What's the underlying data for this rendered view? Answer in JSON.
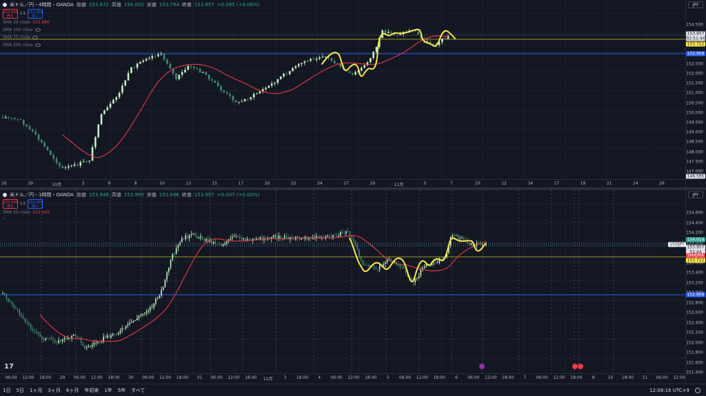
{
  "colors": {
    "bg": "#131722",
    "up": "#c5f3c1",
    "down": "#3d8f6e",
    "sma": "#f23645",
    "hl": "#ffeb3b",
    "blue": "#2962ff",
    "olive": "#9a9a1a",
    "grid": "#1e222d"
  },
  "top": {
    "title": "米ドル／円・4時間・OANDA",
    "ohlc": [
      {
        "k": "始値",
        "v": "153.872"
      },
      {
        "k": "高値",
        "v": "154.002"
      },
      {
        "k": "安値",
        "v": "153.794"
      },
      {
        "k": "終値",
        "v": "153.957"
      }
    ],
    "change": "+0.085 (+0.06%)",
    "sell_price": "153.949",
    "sell_label": "売り",
    "buy_price": "153.964",
    "buy_label": "買い",
    "spread": "1.5",
    "indicators": [
      {
        "name": "SMA 20 close",
        "value": "153.880"
      },
      {
        "name": "SMA 100 close",
        "value": ""
      },
      {
        "name": "SMA 75 close",
        "value": ""
      },
      {
        "name": "SMA 200 close",
        "value": ""
      }
    ],
    "currency": "JPY",
    "price_ticks": [
      "154.500",
      "154.000",
      "153.500",
      "153.000",
      "152.500",
      "152.000",
      "151.500",
      "151.000",
      "150.500",
      "150.000",
      "149.500",
      "149.000",
      "148.500",
      "148.000",
      "147.500",
      "147.000"
    ],
    "tag_last": "153.957",
    "tag_countdown": "02:51:44",
    "tag_hl": "153.722",
    "tag_blue": "152.959",
    "tag_bottom": "146.595",
    "x_ticks": [
      "26",
      "29",
      "10月",
      "3",
      "6",
      "8",
      "10",
      "13",
      "15",
      "17",
      "20",
      "22",
      "24",
      "27",
      "29",
      "11月",
      "5",
      "7",
      "10",
      "12",
      "14",
      "17",
      "19",
      "21",
      "24",
      "26"
    ]
  },
  "bottom": {
    "title": "米ドル／円・1時間・OANDA",
    "ohlc": [
      {
        "k": "始値",
        "v": "153.948"
      },
      {
        "k": "高値",
        "v": "153.995"
      },
      {
        "k": "安値",
        "v": "153.946"
      },
      {
        "k": "終値",
        "v": "153.957"
      }
    ],
    "change": "+0.007 (+0.00%)",
    "sell_price": "153.949",
    "sell_label": "売り",
    "buy_price": "153.964",
    "buy_label": "買い",
    "spread": "1.5",
    "indicators": [
      {
        "name": "SMA 20 close",
        "value": "153.945"
      }
    ],
    "currency": "JPY",
    "price_ticks": [
      "154.600",
      "154.400",
      "154.200",
      "154.000",
      "153.800",
      "153.600",
      "153.400",
      "153.200",
      "153.000",
      "152.800",
      "152.600",
      "152.400",
      "152.200",
      "152.000",
      "151.800",
      "151.600",
      "151.400"
    ],
    "tag_green": "154.014",
    "tag_symbol": "USDJPY",
    "tag_last": "153.957",
    "tag_countdown": "51:44",
    "tag_sma": "SMA/MA",
    "tag_hl": "153.722",
    "tag_blue": "152.959",
    "x_ticks": [
      "06:00",
      "12:00",
      "18:00",
      "29",
      "06:00",
      "12:00",
      "18:00",
      "30",
      "06:00",
      "12:00",
      "18:00",
      "31",
      "06:00",
      "12:00",
      "18:00",
      "11月",
      "3",
      "18:00",
      "4",
      "06:00",
      "12:00",
      "18:00",
      "5",
      "06:00",
      "12:00",
      "18:00",
      "6",
      "06:00",
      "12:00",
      "18:00",
      "7",
      "06:00",
      "12:00",
      "18:00",
      "8",
      "10",
      "18:00",
      "11",
      "06:00",
      "12:00"
    ]
  },
  "timeframes": [
    "1日",
    "5日",
    "1ヶ月",
    "3ヶ月",
    "6ヶ月",
    "年初来",
    "1年",
    "5年",
    "すべて"
  ],
  "clock": "12:08:16 UTC+9"
}
